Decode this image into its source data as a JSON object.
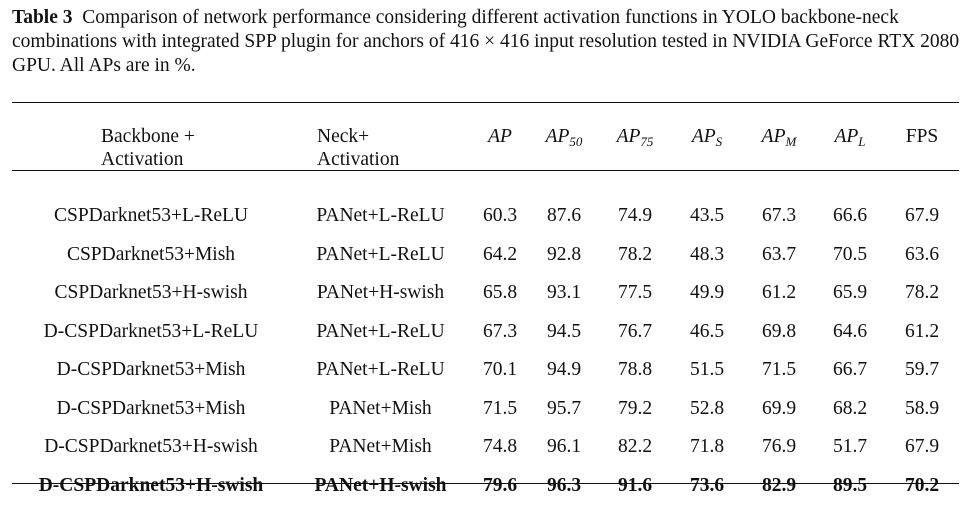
{
  "caption": {
    "label": "Table 3",
    "text": "Comparison of network performance considering different activation functions in YOLO backbone-neck combinations with integrated SPP plugin for anchors of 416 × 416 input resolution tested in NVIDIA GeForce RTX 2080 GPU. All APs are in %."
  },
  "table": {
    "headers": {
      "backbone_line1": "Backbone +",
      "backbone_line2": "Activation",
      "neck_line1": "Neck+",
      "neck_line2": "Activation",
      "ap": "AP",
      "ap50_base": "AP",
      "ap50_sub": "50",
      "ap75_base": "AP",
      "ap75_sub": "75",
      "aps_base": "AP",
      "aps_sub": "S",
      "apm_base": "AP",
      "apm_sub": "M",
      "apl_base": "AP",
      "apl_sub": "L",
      "fps": "FPS"
    },
    "rows": [
      {
        "backbone": "CSPDarknet53+L-ReLU",
        "neck": "PANet+L-ReLU",
        "ap": "60.3",
        "ap50": "87.6",
        "ap75": "74.9",
        "aps": "43.5",
        "apm": "67.3",
        "apl": "66.6",
        "fps": "67.9"
      },
      {
        "backbone": "CSPDarknet53+Mish",
        "neck": "PANet+L-ReLU",
        "ap": "64.2",
        "ap50": "92.8",
        "ap75": "78.2",
        "aps": "48.3",
        "apm": "63.7",
        "apl": "70.5",
        "fps": "63.6"
      },
      {
        "backbone": "CSPDarknet53+H-swish",
        "neck": "PANet+H-swish",
        "ap": "65.8",
        "ap50": "93.1",
        "ap75": "77.5",
        "aps": "49.9",
        "apm": "61.2",
        "apl": "65.9",
        "fps": "78.2"
      },
      {
        "backbone": "D-CSPDarknet53+L-ReLU",
        "neck": "PANet+L-ReLU",
        "ap": "67.3",
        "ap50": "94.5",
        "ap75": "76.7",
        "aps": "46.5",
        "apm": "69.8",
        "apl": "64.6",
        "fps": "61.2"
      },
      {
        "backbone": "D-CSPDarknet53+Mish",
        "neck": "PANet+L-ReLU",
        "ap": "70.1",
        "ap50": "94.9",
        "ap75": "78.8",
        "aps": "51.5",
        "apm": "71.5",
        "apl": "66.7",
        "fps": "59.7"
      },
      {
        "backbone": "D-CSPDarknet53+Mish",
        "neck": "PANet+Mish",
        "ap": "71.5",
        "ap50": "95.7",
        "ap75": "79.2",
        "aps": "52.8",
        "apm": "69.9",
        "apl": "68.2",
        "fps": "58.9"
      },
      {
        "backbone": "D-CSPDarknet53+H-swish",
        "neck": "PANet+Mish",
        "ap": "74.8",
        "ap50": "96.1",
        "ap75": "82.2",
        "aps": "71.8",
        "apm": "76.9",
        "apl": "51.7",
        "fps": "67.9"
      },
      {
        "backbone": "D-CSPDarknet53+H-swish",
        "neck": "PANet+H-swish",
        "ap": "79.6",
        "ap50": "96.3",
        "ap75": "91.6",
        "aps": "73.6",
        "apm": "82.9",
        "apl": "89.5",
        "fps": "70.2"
      }
    ]
  }
}
